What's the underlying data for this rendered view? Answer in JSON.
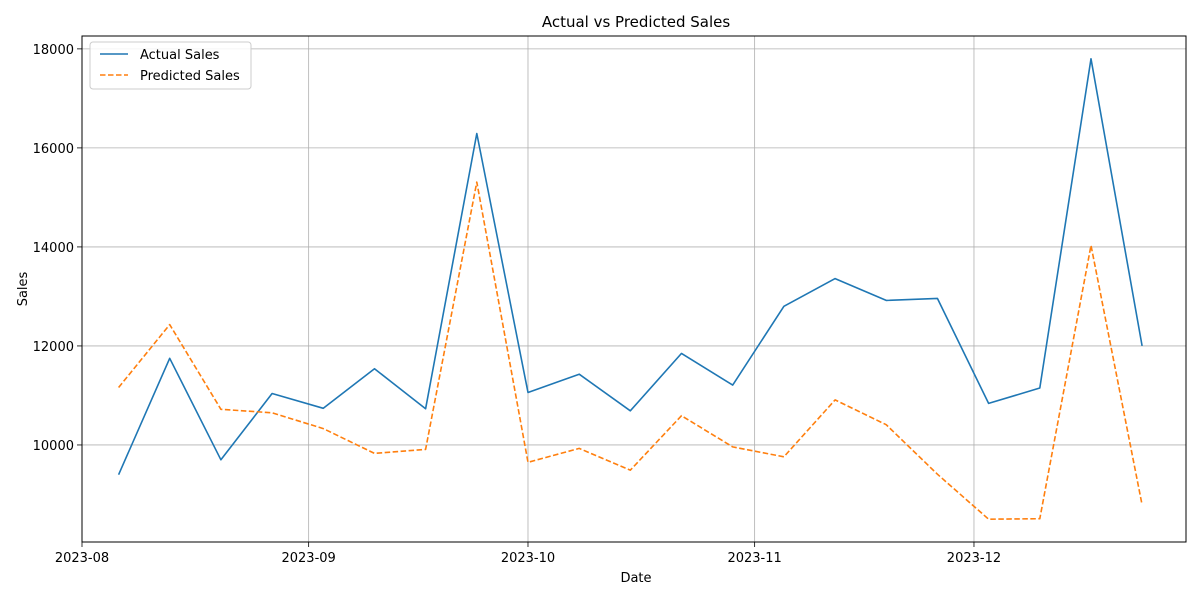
{
  "chart_data": {
    "type": "line",
    "title": "Actual vs Predicted Sales",
    "xlabel": "Date",
    "ylabel": "Sales",
    "x": [
      "2023-08-06",
      "2023-08-13",
      "2023-08-20",
      "2023-08-27",
      "2023-09-03",
      "2023-09-10",
      "2023-09-17",
      "2023-09-24",
      "2023-10-01",
      "2023-10-08",
      "2023-10-15",
      "2023-10-22",
      "2023-10-29",
      "2023-11-05",
      "2023-11-12",
      "2023-11-19",
      "2023-11-26",
      "2023-12-03",
      "2023-12-10",
      "2023-12-17",
      "2023-12-24"
    ],
    "series": [
      {
        "name": "Actual Sales",
        "color": "#1f77b4",
        "style": "solid",
        "values": [
          9400,
          11750,
          9700,
          11040,
          10740,
          11540,
          10730,
          16290,
          11060,
          11430,
          10690,
          11850,
          11210,
          12800,
          13360,
          12920,
          12960,
          10840,
          11150,
          17800,
          12000
        ]
      },
      {
        "name": "Predicted Sales",
        "color": "#ff7f0e",
        "style": "dashed",
        "values": [
          11160,
          12430,
          10720,
          10650,
          10330,
          9830,
          9910,
          15310,
          9650,
          9930,
          9490,
          10590,
          9960,
          9760,
          10910,
          10410,
          9410,
          8500,
          8510,
          14030,
          8790
        ]
      }
    ],
    "xlim": [
      "2023-08-01",
      "2023-12-30"
    ],
    "ylim": [
      8040,
      18260
    ],
    "xticks": [
      "2023-08",
      "2023-09",
      "2023-10",
      "2023-11",
      "2023-12"
    ],
    "xtick_dates": [
      "2023-08-01",
      "2023-09-01",
      "2023-10-01",
      "2023-11-01",
      "2023-12-01"
    ],
    "yticks": [
      10000,
      12000,
      14000,
      16000,
      18000
    ],
    "grid": true,
    "legend_position": "top-left"
  }
}
